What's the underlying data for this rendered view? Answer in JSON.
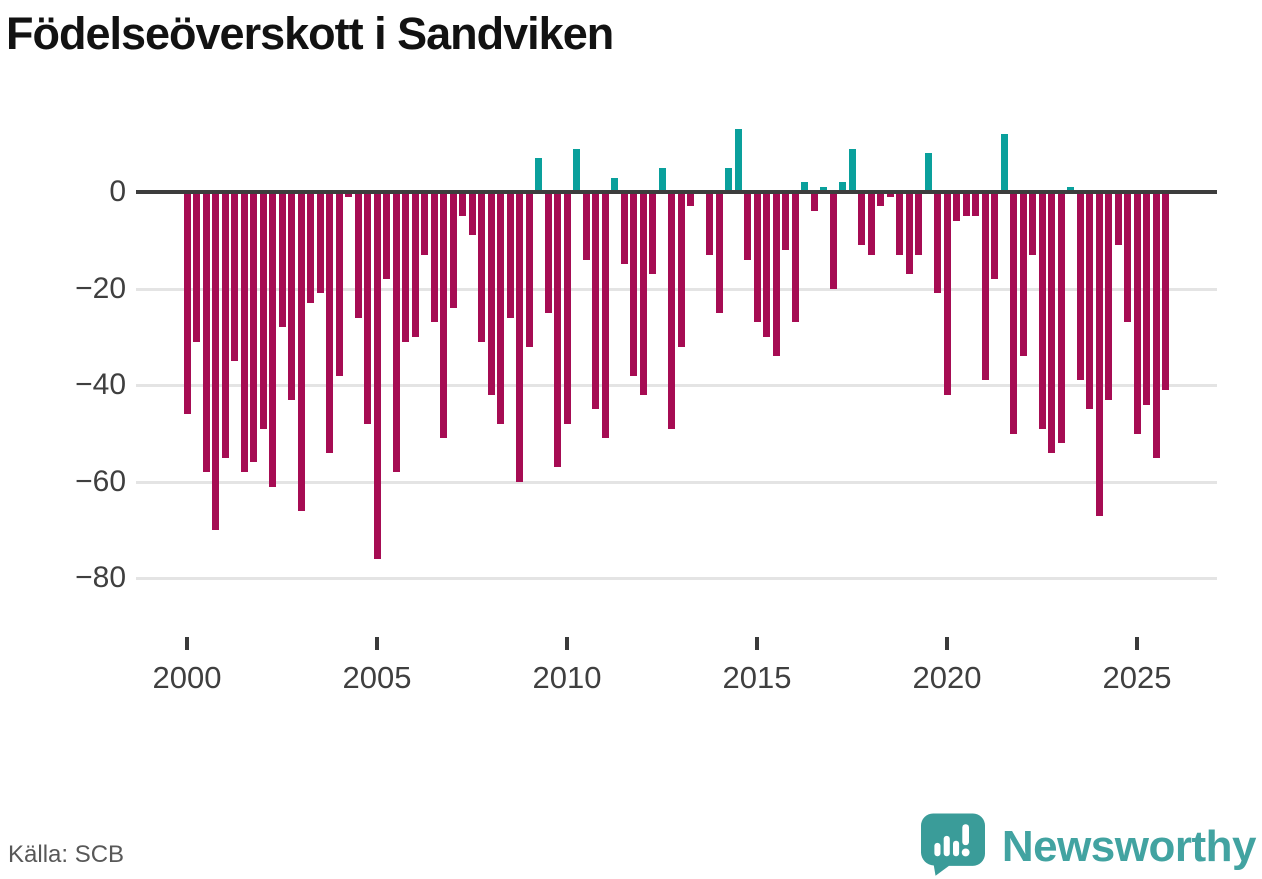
{
  "title": "Födelseöverskott i Sandviken",
  "source": "Källa: SCB",
  "brand": {
    "name": "Newsworthy",
    "logo_icon": "speech-bubble-chart-icon"
  },
  "colors": {
    "negative_bar": "#a60c53",
    "positive_bar": "#0aa09c",
    "zero_axis": "#3d3d3d",
    "gridline": "#e4e4e4",
    "axis_text": "#3f3f3f",
    "brand_teal": "#42a3a1"
  },
  "chart_data": {
    "type": "bar",
    "title": "Födelseöverskott i Sandviken",
    "xlabel": "",
    "ylabel": "",
    "frequency": "quarterly",
    "legend": "none",
    "grid": "horizontal",
    "ylim": [
      -85,
      15
    ],
    "y_ticks": [
      {
        "label": "0",
        "value": 0
      },
      {
        "label": "−20",
        "value": -20
      },
      {
        "label": "−40",
        "value": -40
      },
      {
        "label": "−60",
        "value": -60
      },
      {
        "label": "−80",
        "value": -80
      }
    ],
    "x_ticks": [
      {
        "label": "2000",
        "year": 2000
      },
      {
        "label": "2005",
        "year": 2005
      },
      {
        "label": "2010",
        "year": 2010
      },
      {
        "label": "2015",
        "year": 2015
      },
      {
        "label": "2020",
        "year": 2020
      },
      {
        "label": "2025",
        "year": 2025
      }
    ],
    "series": [
      {
        "year": 2000,
        "values": [
          -46,
          -31,
          -58,
          -70
        ]
      },
      {
        "year": 2001,
        "values": [
          -55,
          -35,
          -58,
          -56
        ]
      },
      {
        "year": 2002,
        "values": [
          -49,
          -61,
          -28,
          -43
        ]
      },
      {
        "year": 2003,
        "values": [
          -66,
          -23,
          -21,
          -54
        ]
      },
      {
        "year": 2004,
        "values": [
          -38,
          -1,
          -26,
          -48
        ]
      },
      {
        "year": 2005,
        "values": [
          -76,
          -18,
          -58,
          -31
        ]
      },
      {
        "year": 2006,
        "values": [
          -30,
          -13,
          -27,
          -51
        ]
      },
      {
        "year": 2007,
        "values": [
          -24,
          -5,
          -9,
          -31
        ]
      },
      {
        "year": 2008,
        "values": [
          -42,
          -48,
          -26,
          -60
        ]
      },
      {
        "year": 2009,
        "values": [
          -32,
          7,
          -25,
          -57
        ]
      },
      {
        "year": 2010,
        "values": [
          -48,
          9,
          -14,
          -45
        ]
      },
      {
        "year": 2011,
        "values": [
          -51,
          3,
          -15,
          -38
        ]
      },
      {
        "year": 2012,
        "values": [
          -42,
          -17,
          5,
          -49
        ]
      },
      {
        "year": 2013,
        "values": [
          -32,
          -3,
          0,
          -13
        ]
      },
      {
        "year": 2014,
        "values": [
          -25,
          5,
          13,
          -14
        ]
      },
      {
        "year": 2015,
        "values": [
          -27,
          -30,
          -34,
          -12
        ]
      },
      {
        "year": 2016,
        "values": [
          -27,
          2,
          -4,
          1
        ]
      },
      {
        "year": 2017,
        "values": [
          -20,
          2,
          9,
          -11
        ]
      },
      {
        "year": 2018,
        "values": [
          -13,
          -3,
          -1,
          -13
        ]
      },
      {
        "year": 2019,
        "values": [
          -17,
          -13,
          8,
          -21
        ]
      },
      {
        "year": 2020,
        "values": [
          -42,
          -6,
          -5,
          -5
        ]
      },
      {
        "year": 2021,
        "values": [
          -39,
          -18,
          12,
          -50
        ]
      },
      {
        "year": 2022,
        "values": [
          -34,
          -13,
          -49,
          -54
        ]
      },
      {
        "year": 2023,
        "values": [
          -52,
          1,
          -39,
          -45
        ]
      },
      {
        "year": 2024,
        "values": [
          -67,
          -43,
          -11,
          -27
        ]
      },
      {
        "year": 2025,
        "values": [
          -50,
          -44,
          -55,
          -41
        ]
      }
    ]
  }
}
